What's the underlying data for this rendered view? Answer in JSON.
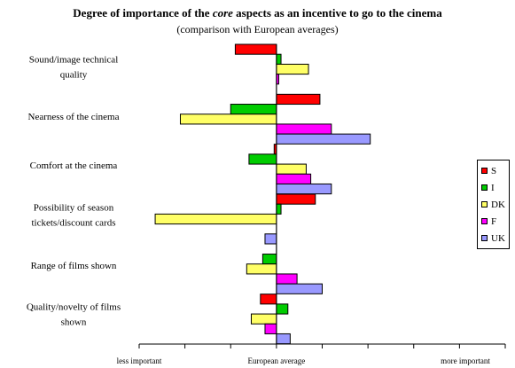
{
  "title": {
    "before": "Degree of importance of the ",
    "emph": "core",
    "after": " aspects as an incentive to go to the cinema"
  },
  "subtitle": "(comparison with European averages)",
  "chart_data": {
    "type": "bar",
    "orientation": "horizontal",
    "categories": [
      [
        "Sound/image technical",
        "quality"
      ],
      [
        "Nearness of the cinema"
      ],
      [
        "Comfort at the cinema"
      ],
      [
        "Possibility of season",
        "tickets/discount cards"
      ],
      [
        "Range of films shown"
      ],
      [
        "Quality/novelty of films",
        "shown"
      ]
    ],
    "series": [
      {
        "name": "S",
        "color": "#ff0000",
        "values": [
          -0.9,
          0.95,
          -0.05,
          0.85,
          0,
          -0.35
        ]
      },
      {
        "name": "I",
        "color": "#00cc00",
        "values": [
          0.1,
          -1.0,
          -0.6,
          0.1,
          -0.3,
          0.25
        ]
      },
      {
        "name": "DK",
        "color": "#ffff66",
        "values": [
          0.7,
          -2.1,
          0.65,
          -2.65,
          -0.65,
          -0.55
        ]
      },
      {
        "name": "F",
        "color": "#ff00ff",
        "values": [
          0.05,
          1.2,
          0.75,
          0,
          0.45,
          -0.25
        ]
      },
      {
        "name": "UK",
        "color": "#9999ff",
        "values": [
          0,
          2.05,
          1.2,
          -0.25,
          1.0,
          0.3
        ]
      }
    ],
    "xlim": [
      -3,
      5
    ],
    "x_ticks": [
      -3,
      -2,
      -1,
      0,
      1,
      2,
      3,
      4,
      5
    ],
    "axis_labels": {
      "left": "less important",
      "center": "European average",
      "right": "more important"
    },
    "grid": false,
    "legend_position": "right"
  }
}
